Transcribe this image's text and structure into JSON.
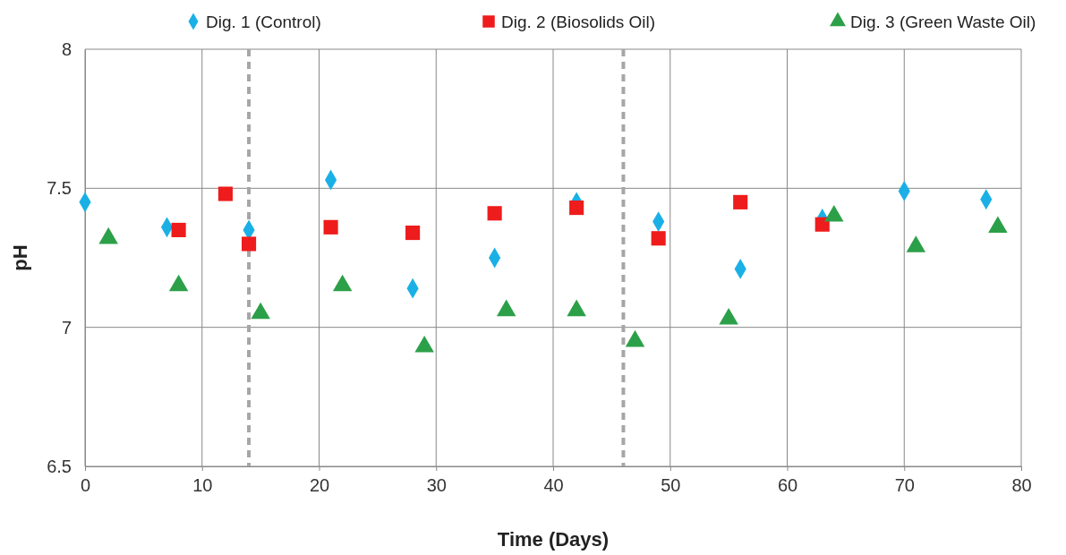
{
  "chart_data": {
    "type": "scatter",
    "xlabel": "Time (Days)",
    "ylabel": "pH",
    "xlim": [
      0,
      80
    ],
    "xticks": [
      0,
      10,
      20,
      30,
      40,
      50,
      60,
      70,
      80
    ],
    "ylim": [
      6.5,
      8
    ],
    "yticks": [
      6.5,
      7,
      7.5,
      8
    ],
    "grid": true,
    "legend": "top",
    "series": [
      {
        "name": "Dig. 1 (Control)",
        "color": "#1ab0e6",
        "marker": "diamond",
        "x": [
          0,
          7,
          14,
          21,
          28,
          35,
          42,
          49,
          56,
          63,
          70,
          77
        ],
        "values": [
          7.45,
          7.36,
          7.35,
          7.53,
          7.14,
          7.25,
          7.45,
          7.38,
          7.21,
          7.39,
          7.49,
          7.46
        ]
      },
      {
        "name": "Dig. 2 (Biosolids Oil)",
        "color": "#ee1c1c",
        "marker": "square",
        "x": [
          8,
          12,
          14,
          21,
          28,
          35,
          42,
          49,
          56,
          63
        ],
        "values": [
          7.35,
          7.48,
          7.3,
          7.36,
          7.34,
          7.41,
          7.43,
          7.32,
          7.45,
          7.37
        ]
      },
      {
        "name": "Dig. 3 (Green Waste Oil)",
        "color": "#2ca048",
        "marker": "triangle",
        "x": [
          2,
          8,
          15,
          22,
          29,
          36,
          42,
          47,
          55,
          64,
          71,
          78
        ],
        "values": [
          7.32,
          7.15,
          7.05,
          7.15,
          6.93,
          7.06,
          7.06,
          6.95,
          7.03,
          7.4,
          7.29,
          7.36
        ]
      }
    ],
    "ref_lines": [
      {
        "axis": "x",
        "value": 14,
        "color": "#a6a6a6",
        "line_style": "dashed"
      },
      {
        "axis": "x",
        "value": 46,
        "color": "#a6a6a6",
        "line_style": "dashed"
      }
    ]
  }
}
